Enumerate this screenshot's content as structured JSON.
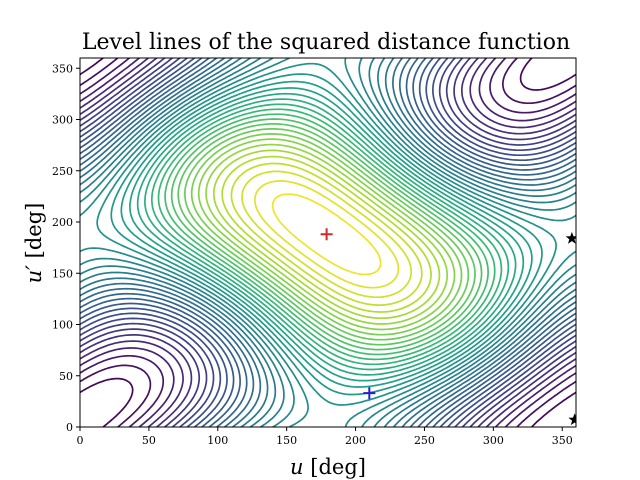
{
  "chart_data": {
    "type": "contour",
    "title": "Level lines of the squared distance function",
    "xlabel_symbol": "u",
    "xlabel_unit": "[deg]",
    "ylabel_symbol": "u′",
    "ylabel_unit": "[deg]",
    "xlim": [
      0,
      360
    ],
    "ylim": [
      0,
      360
    ],
    "x_ticks": [
      0,
      50,
      100,
      150,
      200,
      250,
      300,
      350
    ],
    "y_ticks": [
      0,
      50,
      100,
      150,
      200,
      250,
      300,
      350
    ],
    "grid": false,
    "colormap": "viridis",
    "colormap_stops": [
      "#440154",
      "#482878",
      "#3e4a89",
      "#31688e",
      "#26828e",
      "#1f9e89",
      "#35b779",
      "#6ece58",
      "#b5de2b",
      "#fde725"
    ],
    "markers": [
      {
        "symbol": "plus",
        "x": 179,
        "y": 188,
        "color": "#d62728"
      },
      {
        "symbol": "plus",
        "x": 210,
        "y": 33,
        "color": "#1f1fd6"
      },
      {
        "symbol": "star",
        "x": 357,
        "y": 184,
        "color": "#000000"
      },
      {
        "symbol": "star",
        "x": 359,
        "y": 7,
        "color": "#000000"
      }
    ]
  }
}
